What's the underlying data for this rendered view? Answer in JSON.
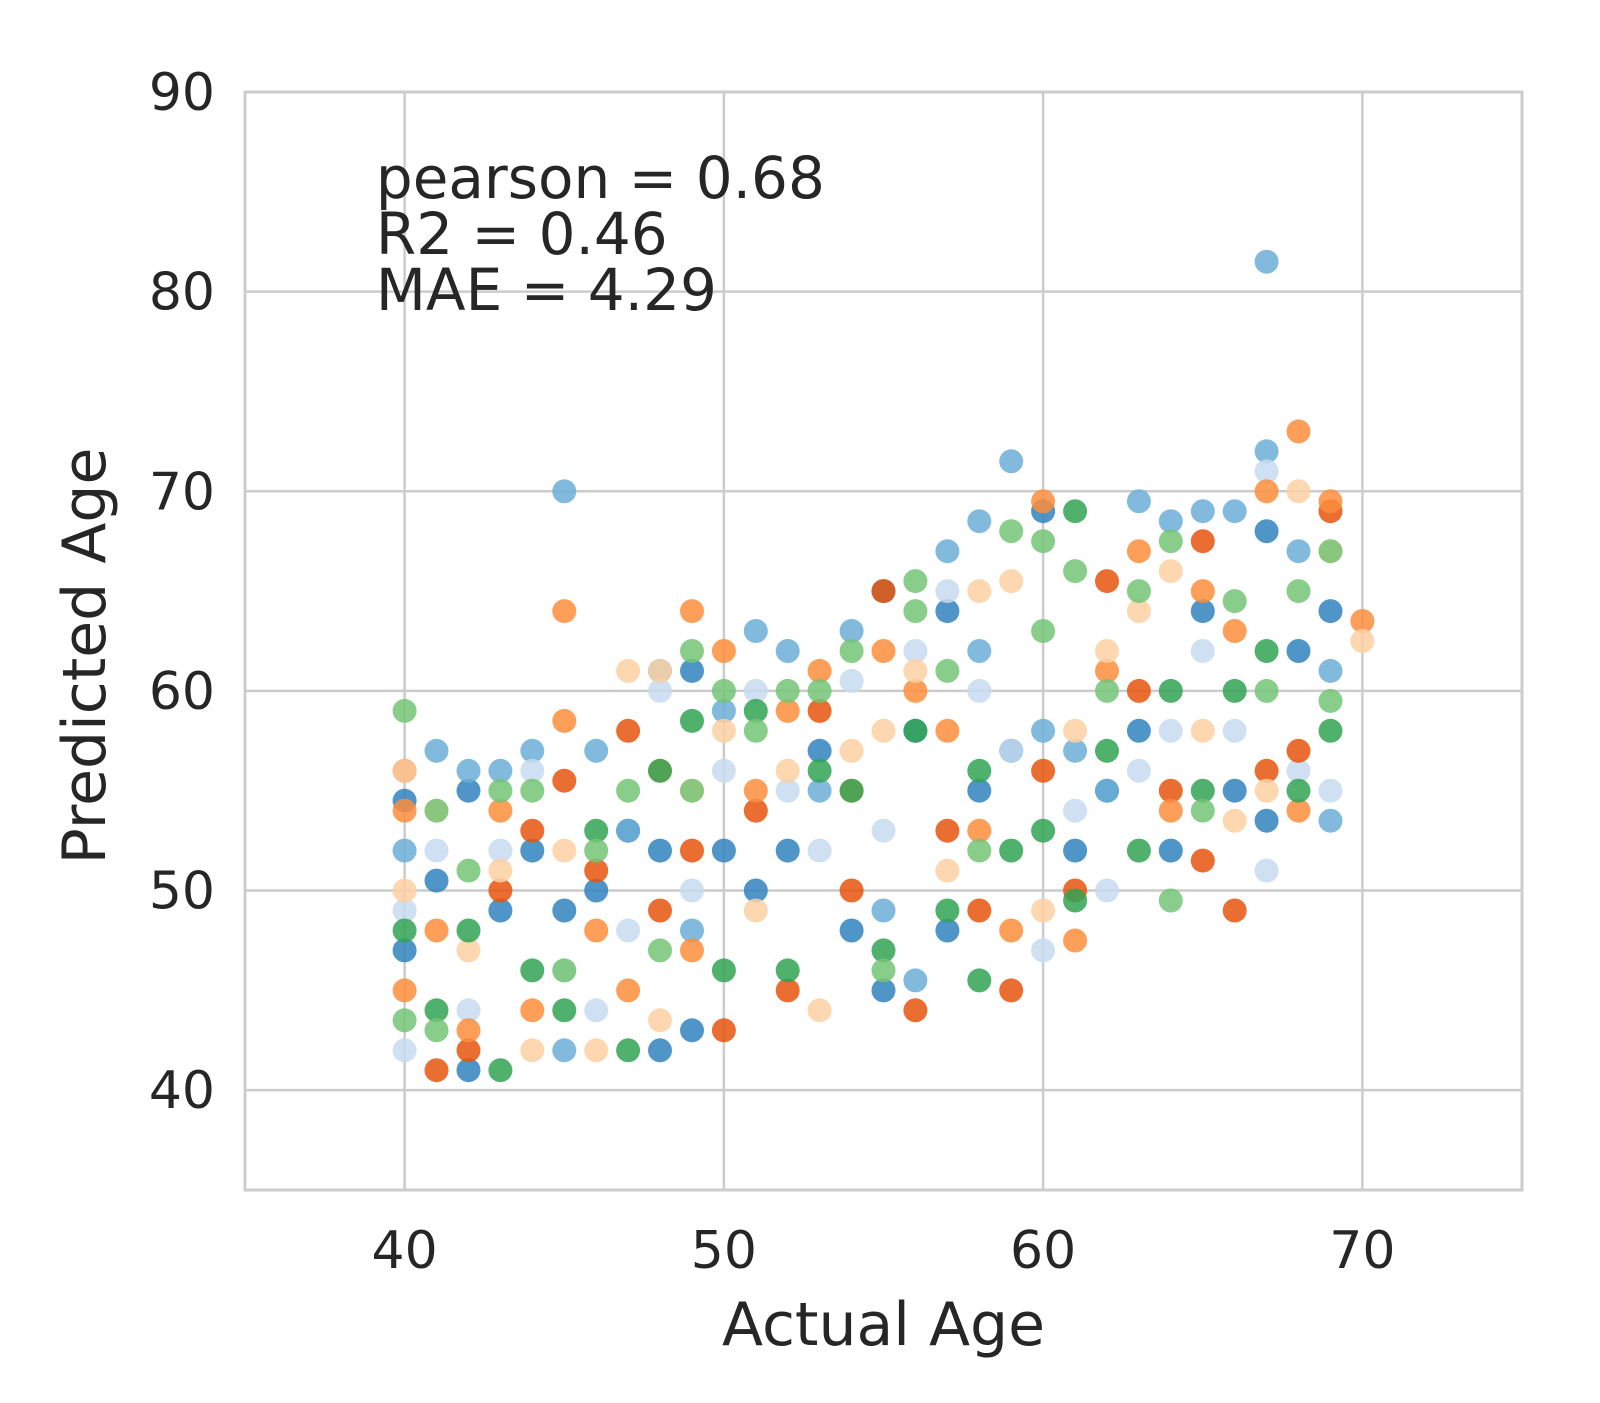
{
  "chart_data": {
    "type": "scatter",
    "title": "",
    "xlabel": "Actual Age",
    "ylabel": "Predicted Age",
    "xlim": [
      35,
      75
    ],
    "ylim": [
      35,
      90
    ],
    "x_ticks": [
      "40",
      "50",
      "60",
      "70"
    ],
    "y_ticks": [
      "40",
      "50",
      "60",
      "70",
      "80",
      "90"
    ],
    "grid": true,
    "annotations": [
      "pearson = 0.68",
      "R2 = 0.46",
      "MAE = 4.29"
    ],
    "colors": [
      "#3182bd",
      "#6baed6",
      "#c6dbef",
      "#e6550d",
      "#fd8d3c",
      "#fdd0a2",
      "#31a354",
      "#74c476"
    ],
    "series": [
      {
        "color": "#3182bd",
        "points": [
          [
            40,
            54.5
          ],
          [
            40,
            47
          ],
          [
            41,
            50.5
          ],
          [
            42,
            41
          ],
          [
            42,
            55
          ],
          [
            43,
            49
          ],
          [
            44,
            52
          ],
          [
            45,
            49
          ],
          [
            46,
            50
          ],
          [
            47,
            53
          ],
          [
            48,
            42
          ],
          [
            48,
            52
          ],
          [
            49,
            61
          ],
          [
            49,
            43
          ],
          [
            50,
            52
          ],
          [
            51,
            50
          ],
          [
            52,
            52
          ],
          [
            53,
            57
          ],
          [
            54,
            48
          ],
          [
            55,
            45
          ],
          [
            55,
            65
          ],
          [
            56,
            58
          ],
          [
            57,
            48
          ],
          [
            57,
            64
          ],
          [
            58,
            55
          ],
          [
            59,
            57
          ],
          [
            60,
            69
          ],
          [
            61,
            52
          ],
          [
            62,
            55
          ],
          [
            63,
            58
          ],
          [
            64,
            52
          ],
          [
            65,
            64
          ],
          [
            66,
            55
          ],
          [
            67,
            53.5
          ],
          [
            67,
            68
          ],
          [
            68,
            62
          ],
          [
            69,
            64
          ]
        ]
      },
      {
        "color": "#6baed6",
        "points": [
          [
            40,
            52
          ],
          [
            41,
            57
          ],
          [
            42,
            56
          ],
          [
            43,
            56
          ],
          [
            44,
            57
          ],
          [
            45,
            70
          ],
          [
            45,
            42
          ],
          [
            46,
            57
          ],
          [
            47,
            53
          ],
          [
            48,
            61
          ],
          [
            49,
            48
          ],
          [
            50,
            59
          ],
          [
            51,
            63
          ],
          [
            52,
            62
          ],
          [
            53,
            55
          ],
          [
            54,
            63
          ],
          [
            55,
            49
          ],
          [
            56,
            45.5
          ],
          [
            57,
            67
          ],
          [
            58,
            68.5
          ],
          [
            58,
            62
          ],
          [
            59,
            71.5
          ],
          [
            60,
            58
          ],
          [
            61,
            57
          ],
          [
            62,
            55
          ],
          [
            63,
            69.5
          ],
          [
            64,
            68.5
          ],
          [
            65,
            69
          ],
          [
            66,
            69
          ],
          [
            67,
            81.5
          ],
          [
            67,
            72
          ],
          [
            68,
            67
          ],
          [
            69,
            53.5
          ],
          [
            69,
            61
          ]
        ]
      },
      {
        "color": "#c6dbef",
        "points": [
          [
            40,
            42
          ],
          [
            40,
            49
          ],
          [
            41,
            52
          ],
          [
            42,
            44
          ],
          [
            43,
            52
          ],
          [
            44,
            56
          ],
          [
            45,
            46
          ],
          [
            46,
            44
          ],
          [
            47,
            48
          ],
          [
            48,
            60
          ],
          [
            49,
            50
          ],
          [
            50,
            56
          ],
          [
            51,
            60
          ],
          [
            52,
            55
          ],
          [
            53,
            52
          ],
          [
            54,
            60.5
          ],
          [
            55,
            53
          ],
          [
            56,
            62
          ],
          [
            57,
            65
          ],
          [
            58,
            60
          ],
          [
            59,
            57
          ],
          [
            60,
            47
          ],
          [
            61,
            54
          ],
          [
            62,
            50
          ],
          [
            63,
            56
          ],
          [
            64,
            58
          ],
          [
            65,
            62
          ],
          [
            66,
            58
          ],
          [
            67,
            71
          ],
          [
            67,
            51
          ],
          [
            68,
            56
          ],
          [
            69,
            55
          ]
        ]
      },
      {
        "color": "#e6550d",
        "points": [
          [
            40,
            56
          ],
          [
            41,
            41
          ],
          [
            42,
            42
          ],
          [
            43,
            50
          ],
          [
            44,
            53
          ],
          [
            45,
            55.5
          ],
          [
            46,
            51
          ],
          [
            47,
            58
          ],
          [
            48,
            49
          ],
          [
            49,
            52
          ],
          [
            50,
            43
          ],
          [
            51,
            54
          ],
          [
            52,
            45
          ],
          [
            53,
            59
          ],
          [
            54,
            50
          ],
          [
            55,
            65
          ],
          [
            56,
            44
          ],
          [
            57,
            53
          ],
          [
            58,
            49
          ],
          [
            59,
            45
          ],
          [
            60,
            56
          ],
          [
            61,
            50
          ],
          [
            62,
            65.5
          ],
          [
            63,
            60
          ],
          [
            64,
            55
          ],
          [
            65,
            67.5
          ],
          [
            65,
            51.5
          ],
          [
            66,
            49
          ],
          [
            67,
            56
          ],
          [
            68,
            57
          ],
          [
            69,
            69
          ]
        ]
      },
      {
        "color": "#fd8d3c",
        "points": [
          [
            40,
            54
          ],
          [
            40,
            45
          ],
          [
            41,
            48
          ],
          [
            42,
            43
          ],
          [
            43,
            54
          ],
          [
            44,
            44
          ],
          [
            45,
            64
          ],
          [
            45,
            58.5
          ],
          [
            46,
            48
          ],
          [
            47,
            45
          ],
          [
            48,
            56
          ],
          [
            49,
            64
          ],
          [
            49,
            47
          ],
          [
            50,
            62
          ],
          [
            51,
            55
          ],
          [
            52,
            59
          ],
          [
            53,
            61
          ],
          [
            54,
            55
          ],
          [
            55,
            62
          ],
          [
            56,
            60
          ],
          [
            57,
            58
          ],
          [
            58,
            53
          ],
          [
            59,
            48
          ],
          [
            60,
            69.5
          ],
          [
            61,
            47.5
          ],
          [
            62,
            61
          ],
          [
            63,
            67
          ],
          [
            64,
            54
          ],
          [
            65,
            65
          ],
          [
            66,
            63
          ],
          [
            67,
            70
          ],
          [
            68,
            73
          ],
          [
            68,
            54
          ],
          [
            69,
            69.5
          ],
          [
            70,
            63.5
          ]
        ]
      },
      {
        "color": "#fdd0a2",
        "points": [
          [
            40,
            56
          ],
          [
            40,
            50
          ],
          [
            41,
            54
          ],
          [
            42,
            47
          ],
          [
            43,
            51
          ],
          [
            44,
            42
          ],
          [
            45,
            52
          ],
          [
            46,
            42
          ],
          [
            47,
            61
          ],
          [
            48,
            61
          ],
          [
            48,
            43.5
          ],
          [
            49,
            55
          ],
          [
            50,
            58
          ],
          [
            51,
            49
          ],
          [
            52,
            56
          ],
          [
            53,
            44
          ],
          [
            54,
            57
          ],
          [
            55,
            58
          ],
          [
            56,
            61
          ],
          [
            57,
            51
          ],
          [
            58,
            65
          ],
          [
            59,
            65.5
          ],
          [
            60,
            49
          ],
          [
            61,
            58
          ],
          [
            62,
            62
          ],
          [
            63,
            64
          ],
          [
            64,
            66
          ],
          [
            65,
            58
          ],
          [
            66,
            53.5
          ],
          [
            67,
            55
          ],
          [
            68,
            70
          ],
          [
            69,
            67
          ],
          [
            70,
            62.5
          ]
        ]
      },
      {
        "color": "#31a354",
        "points": [
          [
            40,
            48
          ],
          [
            41,
            44
          ],
          [
            42,
            48
          ],
          [
            43,
            41
          ],
          [
            44,
            46
          ],
          [
            45,
            44
          ],
          [
            46,
            53
          ],
          [
            47,
            42
          ],
          [
            48,
            56
          ],
          [
            49,
            58.5
          ],
          [
            50,
            46
          ],
          [
            51,
            59
          ],
          [
            52,
            46
          ],
          [
            53,
            56
          ],
          [
            54,
            55
          ],
          [
            55,
            47
          ],
          [
            56,
            58
          ],
          [
            57,
            49
          ],
          [
            58,
            45.5
          ],
          [
            58,
            56
          ],
          [
            59,
            52
          ],
          [
            60,
            53
          ],
          [
            61,
            69
          ],
          [
            61,
            49.5
          ],
          [
            62,
            57
          ],
          [
            63,
            52
          ],
          [
            64,
            60
          ],
          [
            65,
            55
          ],
          [
            66,
            60
          ],
          [
            67,
            62
          ],
          [
            68,
            55
          ],
          [
            69,
            58
          ]
        ]
      },
      {
        "color": "#74c476",
        "points": [
          [
            40,
            59
          ],
          [
            40,
            43.5
          ],
          [
            41,
            54
          ],
          [
            41,
            43
          ],
          [
            42,
            51
          ],
          [
            43,
            55
          ],
          [
            44,
            55
          ],
          [
            45,
            46
          ],
          [
            46,
            52
          ],
          [
            47,
            55
          ],
          [
            48,
            47
          ],
          [
            49,
            62
          ],
          [
            49,
            55
          ],
          [
            50,
            60
          ],
          [
            51,
            58
          ],
          [
            52,
            60
          ],
          [
            53,
            60
          ],
          [
            54,
            62
          ],
          [
            55,
            46
          ],
          [
            56,
            65.5
          ],
          [
            56,
            64
          ],
          [
            57,
            61
          ],
          [
            58,
            52
          ],
          [
            59,
            68
          ],
          [
            60,
            67.5
          ],
          [
            60,
            63
          ],
          [
            61,
            66
          ],
          [
            62,
            60
          ],
          [
            63,
            65
          ],
          [
            64,
            67.5
          ],
          [
            64,
            49.5
          ],
          [
            65,
            54
          ],
          [
            66,
            64.5
          ],
          [
            67,
            60
          ],
          [
            68,
            65
          ],
          [
            69,
            67
          ],
          [
            69,
            59.5
          ]
        ]
      }
    ]
  }
}
